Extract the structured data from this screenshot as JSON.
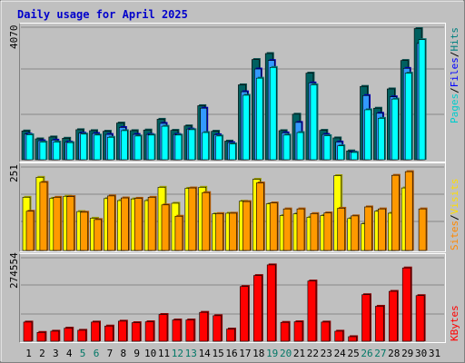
{
  "colors": {
    "background": "#c0c0c0",
    "frame_light": "#ffffff",
    "frame_dark": "#808080",
    "grid": "#888888",
    "pages_front": "#00ffff",
    "pages_back": "#007070",
    "files_front": "#3399ff",
    "files_back": "#0000aa",
    "hits_front": "#00d0d0",
    "hits_back": "#006060",
    "visits_front": "#ffff00",
    "visits_back": "#999900",
    "sites_front": "#ff9900",
    "sites_back": "#aa5500",
    "kbytes_front": "#ff0000",
    "kbytes_back": "#880000",
    "weekend_label": "#007766",
    "weekday_label": "#000000",
    "title_color": "#0000cc",
    "label_pages": "#00cccc",
    "label_files": "#0000ff",
    "label_hits": "#008080",
    "label_sites": "#ff8800",
    "label_visits": "#ffdd00",
    "label_kbytes": "#ff0000",
    "label_separator": "#000000"
  },
  "chart_data": [
    {
      "type": "bar",
      "title": "Daily usage for April 2025",
      "panel": "hits",
      "ymax_label": "4070",
      "ymax": 4070,
      "legend": [
        "Pages",
        "Files",
        "Hits"
      ],
      "categories": [
        "1",
        "2",
        "3",
        "4",
        "5",
        "6",
        "7",
        "8",
        "9",
        "10",
        "11",
        "12",
        "13",
        "14",
        "15",
        "16",
        "17",
        "18",
        "19",
        "20",
        "21",
        "22",
        "23",
        "24",
        "25",
        "26",
        "27",
        "28",
        "29",
        "30",
        "31"
      ],
      "series": [
        {
          "name": "Hits",
          "values": [
            910,
            660,
            720,
            680,
            950,
            920,
            900,
            1160,
            920,
            940,
            1280,
            930,
            1070,
            1710,
            900,
            590,
            2370,
            3170,
            3360,
            920,
            1440,
            2740,
            930,
            690,
            280,
            2320,
            1630,
            2240,
            3140,
            4150,
            0
          ]
        },
        {
          "name": "Files",
          "values": [
            810,
            600,
            620,
            560,
            840,
            830,
            800,
            1020,
            800,
            800,
            1150,
            800,
            970,
            1630,
            790,
            540,
            2150,
            2870,
            3140,
            850,
            1180,
            2430,
            800,
            560,
            240,
            2030,
            1470,
            1990,
            2890,
            3680,
            0
          ]
        },
        {
          "name": "Pages",
          "values": [
            790,
            560,
            560,
            540,
            810,
            780,
            710,
            920,
            750,
            780,
            1060,
            780,
            950,
            860,
            750,
            500,
            2040,
            2580,
            2920,
            780,
            860,
            2370,
            760,
            440,
            230,
            1580,
            1310,
            1920,
            2740,
            3800,
            0
          ]
        }
      ]
    },
    {
      "type": "bar",
      "panel": "visits",
      "ymax_label": "251",
      "ymax": 251,
      "legend": [
        "Sites",
        "Visits"
      ],
      "categories": [
        "1",
        "2",
        "3",
        "4",
        "5",
        "6",
        "7",
        "8",
        "9",
        "10",
        "11",
        "12",
        "13",
        "14",
        "15",
        "16",
        "17",
        "18",
        "19",
        "20",
        "21",
        "22",
        "23",
        "24",
        "25",
        "26",
        "27",
        "28",
        "29",
        "30",
        "31"
      ],
      "series": [
        {
          "name": "Visits",
          "values": [
            160,
            220,
            157,
            163,
            117,
            97,
            156,
            150,
            155,
            150,
            190,
            142,
            187,
            190,
            110,
            112,
            148,
            214,
            140,
            105,
            110,
            100,
            105,
            225,
            96,
            80,
            118,
            112,
            188,
            0,
            0
          ]
        },
        {
          "name": "Sites",
          "values": [
            118,
            205,
            160,
            162,
            115,
            93,
            164,
            158,
            157,
            160,
            137,
            103,
            188,
            174,
            111,
            112,
            147,
            203,
            143,
            125,
            125,
            111,
            113,
            127,
            104,
            131,
            125,
            226,
            237,
            125,
            0
          ]
        }
      ]
    },
    {
      "type": "bar",
      "panel": "kbytes",
      "ymax_label": "274554",
      "ymax": 274554,
      "legend": [
        "KBytes"
      ],
      "categories": [
        "1",
        "2",
        "3",
        "4",
        "5",
        "6",
        "7",
        "8",
        "9",
        "10",
        "11",
        "12",
        "13",
        "14",
        "15",
        "16",
        "17",
        "18",
        "19",
        "20",
        "21",
        "22",
        "23",
        "24",
        "25",
        "26",
        "27",
        "28",
        "29",
        "30",
        "31"
      ],
      "series": [
        {
          "name": "KBytes",
          "values": [
            63000,
            29000,
            33000,
            43000,
            36000,
            63000,
            50000,
            66000,
            61000,
            64000,
            88000,
            70000,
            70000,
            95000,
            84000,
            40000,
            180000,
            216000,
            251000,
            62000,
            64000,
            198000,
            63000,
            33000,
            15000,
            153000,
            115000,
            164000,
            241000,
            150000,
            0
          ]
        }
      ]
    }
  ],
  "x_labels": [
    "1",
    "2",
    "3",
    "4",
    "5",
    "6",
    "7",
    "8",
    "9",
    "10",
    "11",
    "12",
    "13",
    "14",
    "15",
    "16",
    "17",
    "18",
    "19",
    "20",
    "21",
    "22",
    "23",
    "24",
    "25",
    "26",
    "27",
    "28",
    "29",
    "30",
    "31"
  ],
  "weekend_days": [
    5,
    6,
    12,
    13,
    19,
    20,
    26,
    27
  ],
  "right_labels": {
    "hits": [
      {
        "text": "Pages",
        "color": "label_pages"
      },
      {
        "text": "/",
        "color": "label_separator"
      },
      {
        "text": "Files",
        "color": "label_files"
      },
      {
        "text": "/",
        "color": "label_separator"
      },
      {
        "text": "Hits",
        "color": "label_hits"
      }
    ],
    "visits": [
      {
        "text": "Sites",
        "color": "label_sites"
      },
      {
        "text": "/",
        "color": "label_separator"
      },
      {
        "text": "Visits",
        "color": "label_visits"
      }
    ],
    "kbytes": [
      {
        "text": "KBytes",
        "color": "label_kbytes"
      }
    ]
  }
}
